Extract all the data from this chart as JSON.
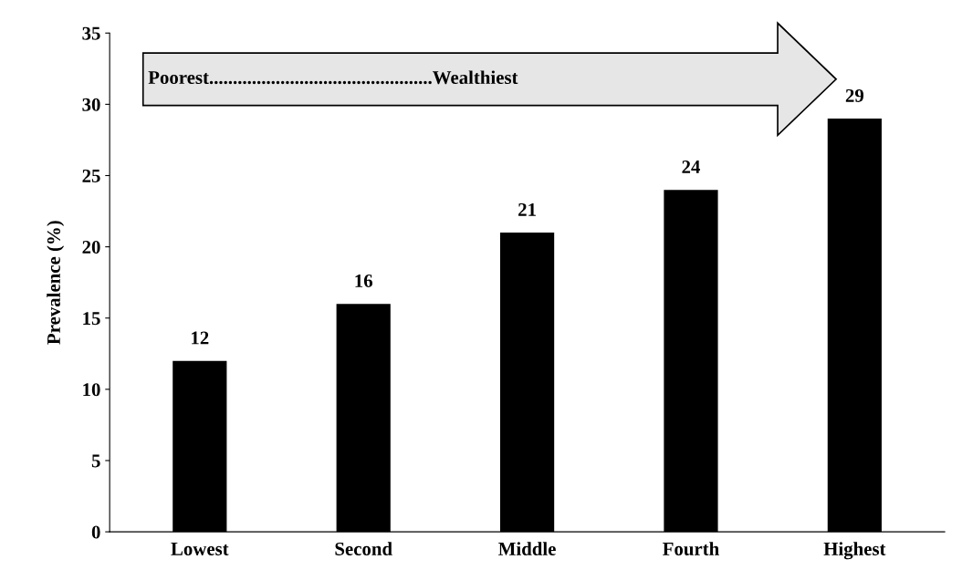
{
  "chart_data": {
    "type": "bar",
    "ylabel": "Prevalence (%)",
    "categories": [
      "Lowest",
      "Second",
      "Middle",
      "Fourth",
      "Highest"
    ],
    "values": [
      12,
      16,
      21,
      24,
      29
    ],
    "color": "#000000",
    "ylim": [
      0,
      35
    ],
    "yticks": [
      0,
      5,
      10,
      15,
      20,
      25,
      30,
      35
    ],
    "grid": false,
    "data_labels": true,
    "annotations": [
      "Poorest...............................................Wealthiest"
    ]
  }
}
